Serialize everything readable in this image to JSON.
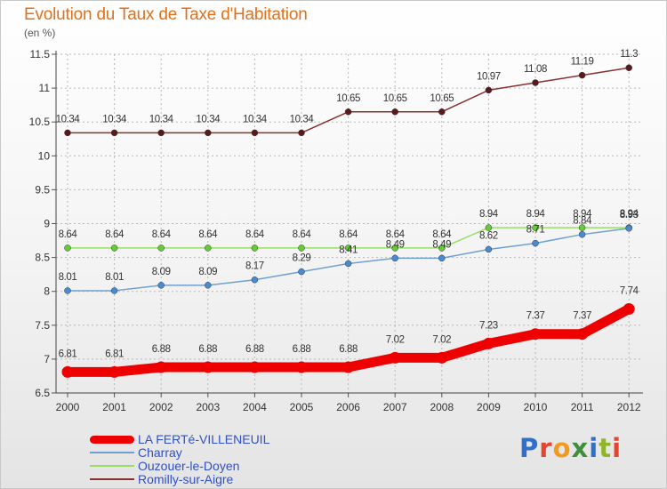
{
  "header": {
    "title": "Evolution du Taux de Taxe d'Habitation",
    "subtitle": "(en %)"
  },
  "logo": {
    "text": "Proxiti",
    "letters": [
      "P",
      "r",
      "o",
      "x",
      "i",
      "t",
      "i"
    ]
  },
  "chart_data": {
    "type": "line",
    "title": "Evolution du Taux de Taxe d'Habitation",
    "subtitle": "(en %)",
    "xlabel": "",
    "ylabel": "",
    "x": [
      "2000",
      "2001",
      "2002",
      "2003",
      "2004",
      "2005",
      "2006",
      "2007",
      "2008",
      "2009",
      "2010",
      "2011",
      "2012"
    ],
    "yticks": [
      "6.5",
      "7",
      "7.5",
      "8",
      "8.5",
      "9",
      "9.5",
      "10",
      "10.5",
      "11",
      "11.5"
    ],
    "ylim": [
      6.5,
      11.5
    ],
    "grid": true,
    "legend_position": "bottom-left",
    "series": [
      {
        "name": "LA FERTé-VILLENEUIL",
        "color": "#ee0000",
        "values": [
          6.81,
          6.81,
          6.88,
          6.88,
          6.88,
          6.88,
          6.88,
          7.02,
          7.02,
          7.23,
          7.37,
          7.37,
          7.74
        ],
        "labels": [
          "6.81",
          "6.81",
          "6.88",
          "6.88",
          "6.88",
          "6.88",
          "6.88",
          "7.02",
          "7.02",
          "7.23",
          "7.37",
          "7.37",
          "7.74"
        ]
      },
      {
        "name": "Charray",
        "color": "#6fa0d0",
        "marker_color": "#4a8bd0",
        "values": [
          8.01,
          8.01,
          8.09,
          8.09,
          8.17,
          8.29,
          8.41,
          8.49,
          8.49,
          8.62,
          8.71,
          8.84,
          8.93
        ],
        "labels": [
          "8.01",
          "8.01",
          "8.09",
          "8.09",
          "8.17",
          "8.29",
          "8.41",
          "8.49",
          "8.49",
          "8.62",
          "8.71",
          "8.84",
          "8.93"
        ]
      },
      {
        "name": "Ouzouer-le-Doyen",
        "color": "#99dd66",
        "marker_color": "#66cc33",
        "values": [
          8.64,
          8.64,
          8.64,
          8.64,
          8.64,
          8.64,
          8.64,
          8.64,
          8.64,
          8.94,
          8.94,
          8.94,
          8.94
        ],
        "labels": [
          "8.64",
          "8.64",
          "8.64",
          "8.64",
          "8.64",
          "8.64",
          "8.64",
          "8.64",
          "8.64",
          "8.94",
          "8.94",
          "8.94",
          "8.94"
        ]
      },
      {
        "name": "Romilly-sur-Aigre",
        "color": "#8b3030",
        "marker_color": "#5a1a1a",
        "values": [
          10.34,
          10.34,
          10.34,
          10.34,
          10.34,
          10.34,
          10.65,
          10.65,
          10.65,
          10.97,
          11.08,
          11.19,
          11.3
        ],
        "labels": [
          "10.34",
          "10.34",
          "10.34",
          "10.34",
          "10.34",
          "10.34",
          "10.65",
          "10.65",
          "10.65",
          "10.97",
          "11.08",
          "11.19",
          "11.3"
        ]
      }
    ]
  }
}
